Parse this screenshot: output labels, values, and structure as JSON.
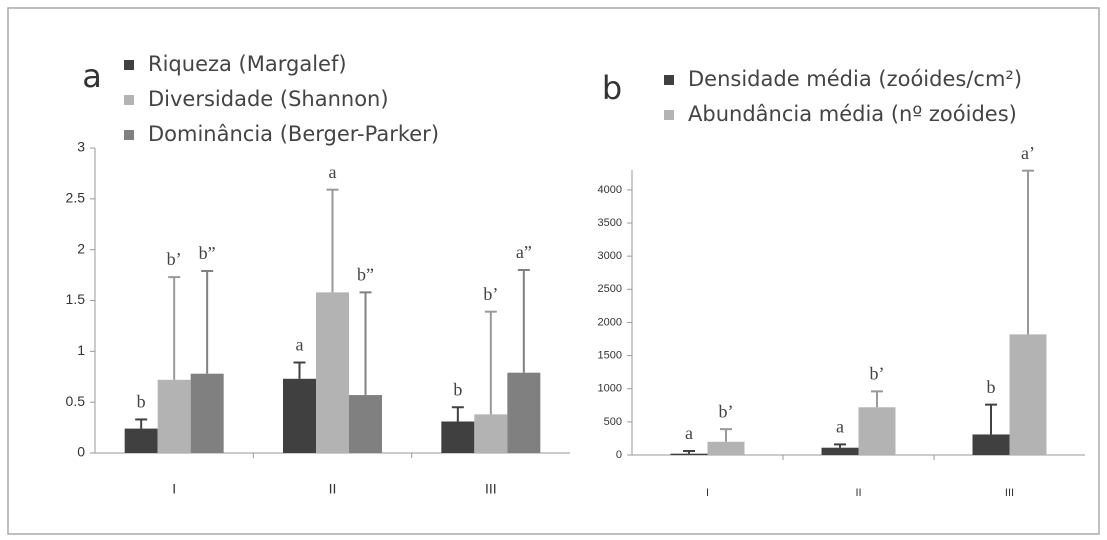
{
  "chart_data": [
    {
      "type": "bar",
      "panel_label": "a",
      "categories": [
        "I",
        "II",
        "III"
      ],
      "ylim": [
        0,
        3
      ],
      "yticks": [
        0,
        0.5,
        1,
        1.5,
        2,
        2.5,
        3
      ],
      "series": [
        {
          "name": "Riqueza (Margalef)",
          "color": "#404040",
          "values": [
            0.24,
            0.73,
            0.31
          ],
          "errors": [
            0.09,
            0.16,
            0.14
          ],
          "letters": [
            "b",
            "a",
            "b"
          ]
        },
        {
          "name": "Diversidade (Shannon)",
          "color": "#b3b3b3",
          "values": [
            0.72,
            1.58,
            0.38
          ],
          "errors": [
            1.01,
            1.01,
            1.01
          ],
          "letters": [
            "b’",
            "a",
            "b’"
          ]
        },
        {
          "name": "Dominância  (Berger-Parker)",
          "color": "#808080",
          "values": [
            0.78,
            0.57,
            0.79
          ],
          "errors": [
            1.01,
            1.01,
            1.01
          ],
          "letters": [
            "b”",
            "b”",
            "a”"
          ]
        }
      ]
    },
    {
      "type": "bar",
      "panel_label": "b",
      "categories": [
        "I",
        "II",
        "III"
      ],
      "ylim": [
        0,
        4300
      ],
      "yticks": [
        0,
        500,
        1000,
        1500,
        2000,
        2500,
        3000,
        3500,
        4000
      ],
      "series": [
        {
          "name": "Densidade média (zoóides/cm²)",
          "color": "#404040",
          "values": [
            20,
            110,
            310
          ],
          "errors": [
            40,
            50,
            450
          ],
          "letters": [
            "a",
            "a",
            "b"
          ]
        },
        {
          "name": "Abundância média (nº  zoóides)",
          "color": "#b3b3b3",
          "values": [
            200,
            720,
            1820
          ],
          "errors": [
            190,
            240,
            2470
          ],
          "letters": [
            "b’",
            "b’",
            "a’"
          ]
        }
      ]
    }
  ]
}
